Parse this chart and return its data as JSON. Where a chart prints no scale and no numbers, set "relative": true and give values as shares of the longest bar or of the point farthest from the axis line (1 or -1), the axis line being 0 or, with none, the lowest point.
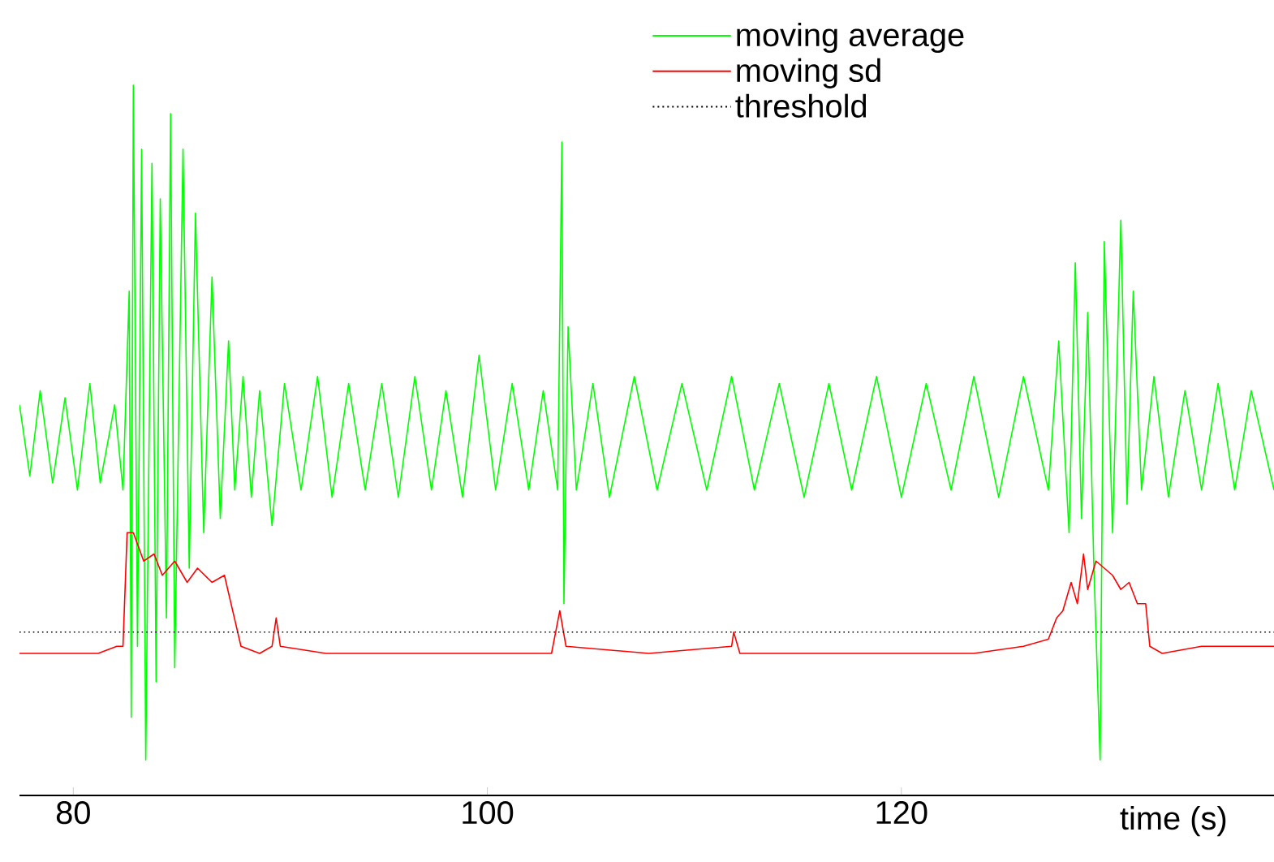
{
  "chart_data": {
    "type": "line",
    "relative": true,
    "xlabel": "time (s)",
    "xlim": [
      77.4,
      138.0
    ],
    "xticks": [
      80,
      100,
      120
    ],
    "legend": "top right",
    "grid": false,
    "series": [
      {
        "name": "moving average",
        "color": "#00ff00",
        "x": [
          77.4,
          77.9,
          78.4,
          79.0,
          79.6,
          80.2,
          80.8,
          81.3,
          82.0,
          82.4,
          82.7,
          82.8,
          82.9,
          83.1,
          83.3,
          83.5,
          83.8,
          84.0,
          84.2,
          84.5,
          84.7,
          84.9,
          85.3,
          85.6,
          85.9,
          86.3,
          86.7,
          87.1,
          87.5,
          87.8,
          88.2,
          88.6,
          89.0,
          89.6,
          90.2,
          91.0,
          91.8,
          92.5,
          93.3,
          94.1,
          94.9,
          95.7,
          96.5,
          97.3,
          98.0,
          98.8,
          99.6,
          100.4,
          101.2,
          102.0,
          102.7,
          103.4,
          103.6,
          103.7,
          103.9,
          104.3,
          105.1,
          105.9,
          107.1,
          108.2,
          109.4,
          110.6,
          111.8,
          112.9,
          114.1,
          115.3,
          116.5,
          117.6,
          118.8,
          120.0,
          121.2,
          122.4,
          123.5,
          124.7,
          125.9,
          127.1,
          127.6,
          128.1,
          128.4,
          128.7,
          129.0,
          129.3,
          129.6,
          129.8,
          130.2,
          130.6,
          130.9,
          131.2,
          131.6,
          132.2,
          132.9,
          133.7,
          134.5,
          135.3,
          136.1,
          136.9,
          138.0
        ],
        "values": [
          0.55,
          0.45,
          0.57,
          0.44,
          0.56,
          0.43,
          0.58,
          0.44,
          0.55,
          0.43,
          0.71,
          0.11,
          1.0,
          0.21,
          0.91,
          0.05,
          0.89,
          0.16,
          0.84,
          0.25,
          0.96,
          0.18,
          0.91,
          0.32,
          0.82,
          0.37,
          0.73,
          0.39,
          0.64,
          0.43,
          0.59,
          0.42,
          0.57,
          0.38,
          0.58,
          0.43,
          0.59,
          0.42,
          0.58,
          0.43,
          0.58,
          0.42,
          0.59,
          0.43,
          0.57,
          0.42,
          0.62,
          0.43,
          0.58,
          0.43,
          0.57,
          0.43,
          0.92,
          0.27,
          0.66,
          0.43,
          0.58,
          0.42,
          0.59,
          0.43,
          0.58,
          0.43,
          0.59,
          0.43,
          0.58,
          0.42,
          0.58,
          0.43,
          0.59,
          0.42,
          0.58,
          0.43,
          0.59,
          0.42,
          0.59,
          0.43,
          0.64,
          0.37,
          0.75,
          0.39,
          0.68,
          0.32,
          0.05,
          0.78,
          0.37,
          0.81,
          0.41,
          0.71,
          0.43,
          0.59,
          0.42,
          0.57,
          0.43,
          0.58,
          0.43,
          0.57,
          0.43
        ]
      },
      {
        "name": "moving sd",
        "color": "#ff0000",
        "x": [
          77.4,
          81.2,
          82.1,
          82.4,
          82.6,
          82.9,
          83.4,
          83.9,
          84.3,
          84.9,
          85.5,
          86.0,
          86.7,
          87.3,
          87.7,
          88.1,
          89.0,
          89.6,
          89.8,
          90.0,
          92.2,
          96.1,
          100.0,
          103.1,
          103.5,
          103.8,
          107.8,
          111.8,
          111.9,
          112.2,
          115.7,
          119.6,
          123.5,
          125.9,
          127.1,
          127.5,
          127.8,
          128.2,
          128.5,
          128.8,
          129.0,
          129.4,
          129.8,
          130.2,
          130.6,
          131.0,
          131.4,
          131.8,
          132.0,
          132.6,
          134.5,
          138.0
        ],
        "values": [
          0.2,
          0.2,
          0.21,
          0.21,
          0.37,
          0.37,
          0.33,
          0.34,
          0.31,
          0.33,
          0.3,
          0.32,
          0.3,
          0.31,
          0.26,
          0.21,
          0.2,
          0.21,
          0.25,
          0.21,
          0.2,
          0.2,
          0.2,
          0.2,
          0.26,
          0.21,
          0.2,
          0.21,
          0.23,
          0.2,
          0.2,
          0.2,
          0.2,
          0.21,
          0.22,
          0.25,
          0.26,
          0.3,
          0.27,
          0.34,
          0.29,
          0.33,
          0.32,
          0.31,
          0.29,
          0.3,
          0.27,
          0.27,
          0.21,
          0.2,
          0.21,
          0.21
        ]
      }
    ],
    "ref_lines": [
      {
        "axis": "y",
        "value": 0.23,
        "label": "threshold",
        "color": "#000000",
        "line_style": "dotted"
      }
    ]
  }
}
